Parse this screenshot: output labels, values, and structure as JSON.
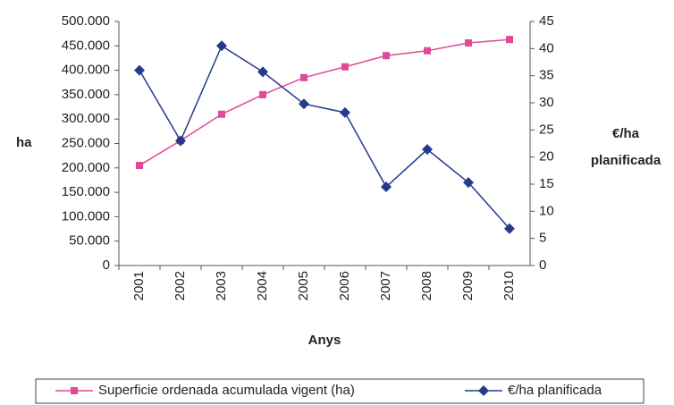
{
  "chart_data": {
    "type": "line",
    "x_label": "Anys",
    "y_label": "ha",
    "y2_label": "€/ha planificada",
    "categories": [
      "2001",
      "2002",
      "2003",
      "2004",
      "2005",
      "2006",
      "2007",
      "2008",
      "2009",
      "2010"
    ],
    "series": [
      {
        "name": "Superficie ordenada acumulada vigent (ha)",
        "color": "#e0489a",
        "marker": "square",
        "values": [
          205000,
          256000,
          310000,
          350000,
          385000,
          407000,
          430000,
          440000,
          456000,
          463000
        ]
      },
      {
        "name": "€/ha planificada",
        "color": "#253a8c",
        "marker": "diamond",
        "axis": "y2",
        "values": [
          36,
          23,
          40.5,
          35.7,
          29.8,
          28.2,
          14.5,
          21.4,
          15.3,
          6.8
        ]
      }
    ],
    "ylim": [
      0,
      500000
    ],
    "yticks": [
      0,
      {
        "value": 50000,
        "label": "50.000"
      },
      {
        "value": 100000,
        "label": "100.000"
      },
      {
        "value": 150000,
        "label": "150.000"
      },
      {
        "value": 200000,
        "label": "200.000"
      },
      {
        "value": 250000,
        "label": "250.000"
      },
      {
        "value": 300000,
        "label": "300.000"
      },
      {
        "value": 350000,
        "label": "350.000"
      },
      {
        "value": 400000,
        "label": "400.000"
      },
      {
        "value": 450000,
        "label": "450.000"
      },
      {
        "value": 500000,
        "label": "500.000"
      }
    ],
    "y2lim": [
      0,
      45
    ],
    "y2ticks": [
      0,
      5,
      10,
      15,
      20,
      25,
      30,
      35,
      40,
      45
    ],
    "grid": false,
    "legend": "bottom"
  }
}
